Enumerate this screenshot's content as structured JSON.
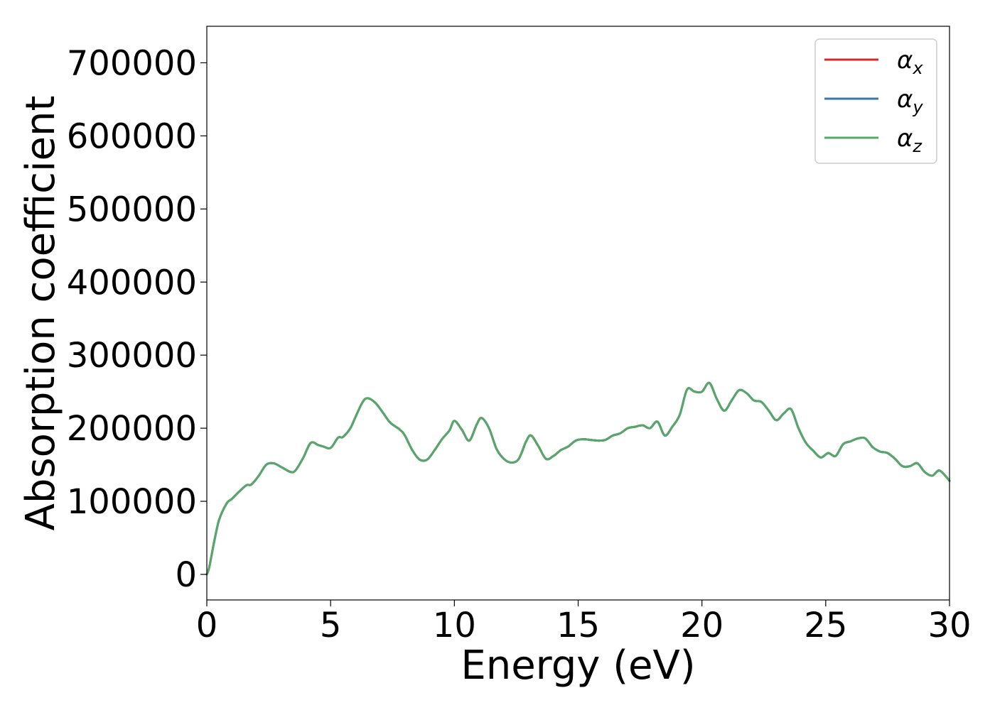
{
  "chart_data": {
    "type": "line",
    "title": "",
    "xlabel": "Energy (eV)",
    "ylabel": "Absorption coefficient",
    "xlim": [
      0,
      30
    ],
    "ylim": [
      -35000,
      750000
    ],
    "xticks": [
      0,
      5,
      10,
      15,
      20,
      25,
      30
    ],
    "xtick_labels": [
      "0",
      "5",
      "10",
      "15",
      "20",
      "25",
      "30"
    ],
    "yticks": [
      0,
      100000,
      200000,
      300000,
      400000,
      500000,
      600000,
      700000
    ],
    "ytick_labels": [
      "0",
      "100000",
      "200000",
      "300000",
      "400000",
      "500000",
      "600000",
      "700000"
    ],
    "grid": false,
    "legend_position": "top-right",
    "x": [
      0,
      0.1,
      0.3,
      0.5,
      0.8,
      1.0,
      1.3,
      1.6,
      1.8,
      2.1,
      2.4,
      2.7,
      3.0,
      3.4,
      3.6,
      3.9,
      4.2,
      4.5,
      4.7,
      5.0,
      5.3,
      5.5,
      5.8,
      6.0,
      6.3,
      6.5,
      6.8,
      7.1,
      7.4,
      7.8,
      8.0,
      8.3,
      8.6,
      8.9,
      9.2,
      9.5,
      9.8,
      10.0,
      10.3,
      10.6,
      10.9,
      11.1,
      11.4,
      11.7,
      12.0,
      12.3,
      12.6,
      12.9,
      13.1,
      13.4,
      13.7,
      14.0,
      14.3,
      14.6,
      14.9,
      15.2,
      15.5,
      15.8,
      16.1,
      16.4,
      16.7,
      17.0,
      17.3,
      17.6,
      17.9,
      18.2,
      18.5,
      18.8,
      19.1,
      19.4,
      19.7,
      20.0,
      20.3,
      20.6,
      20.9,
      21.2,
      21.5,
      21.8,
      22.1,
      22.4,
      22.7,
      23.0,
      23.3,
      23.6,
      23.9,
      24.2,
      24.5,
      24.8,
      25.1,
      25.4,
      25.7,
      26.0,
      26.3,
      26.6,
      26.9,
      27.2,
      27.5,
      27.8,
      28.1,
      28.4,
      28.7,
      29.0,
      29.3,
      29.6,
      30.0
    ],
    "series": [
      {
        "name": "αx",
        "color": "#d62728",
        "values": [
          0,
          10000,
          45000,
          75000,
          97000,
          103000,
          113000,
          122000,
          123000,
          135000,
          150000,
          152000,
          147000,
          140000,
          143000,
          160000,
          180000,
          177000,
          175000,
          173000,
          187000,
          188000,
          200000,
          215000,
          236000,
          241000,
          235000,
          222000,
          208000,
          198000,
          190000,
          170000,
          157000,
          157000,
          170000,
          185000,
          197000,
          210000,
          198000,
          183000,
          205000,
          214000,
          200000,
          172000,
          158000,
          153000,
          158000,
          182000,
          190000,
          175000,
          158000,
          162000,
          170000,
          175000,
          183000,
          185000,
          184000,
          183000,
          184000,
          190000,
          193000,
          200000,
          202000,
          204000,
          200000,
          209000,
          190000,
          202000,
          218000,
          253000,
          250000,
          250000,
          262000,
          240000,
          224000,
          238000,
          252000,
          248000,
          238000,
          236000,
          224000,
          211000,
          220000,
          226000,
          200000,
          180000,
          169000,
          160000,
          166000,
          162000,
          178000,
          182000,
          186000,
          186000,
          174000,
          168000,
          166000,
          158000,
          148000,
          148000,
          152000,
          140000,
          135000,
          142000,
          128000
        ]
      },
      {
        "name": "αy",
        "color": "#3b75af",
        "values": [
          0,
          10000,
          45000,
          75000,
          97000,
          103000,
          113000,
          122000,
          123000,
          135000,
          150000,
          152000,
          147000,
          140000,
          143000,
          160000,
          180000,
          177000,
          175000,
          173000,
          187000,
          188000,
          200000,
          215000,
          236000,
          241000,
          235000,
          222000,
          208000,
          198000,
          190000,
          170000,
          157000,
          157000,
          170000,
          185000,
          197000,
          210000,
          198000,
          183000,
          205000,
          214000,
          200000,
          172000,
          158000,
          153000,
          158000,
          182000,
          190000,
          175000,
          158000,
          162000,
          170000,
          175000,
          183000,
          185000,
          184000,
          183000,
          184000,
          190000,
          193000,
          200000,
          202000,
          204000,
          200000,
          209000,
          190000,
          202000,
          218000,
          253000,
          250000,
          250000,
          262000,
          240000,
          224000,
          238000,
          252000,
          248000,
          238000,
          236000,
          224000,
          211000,
          220000,
          226000,
          200000,
          180000,
          169000,
          160000,
          166000,
          162000,
          178000,
          182000,
          186000,
          186000,
          174000,
          168000,
          166000,
          158000,
          148000,
          148000,
          152000,
          140000,
          135000,
          142000,
          128000
        ]
      },
      {
        "name": "αz",
        "color": "#55a868",
        "values": [
          0,
          10000,
          45000,
          75000,
          97000,
          103000,
          113000,
          122000,
          123000,
          135000,
          150000,
          152000,
          147000,
          140000,
          143000,
          160000,
          180000,
          177000,
          175000,
          173000,
          187000,
          188000,
          200000,
          215000,
          236000,
          241000,
          235000,
          222000,
          208000,
          198000,
          190000,
          170000,
          157000,
          157000,
          170000,
          185000,
          197000,
          210000,
          198000,
          183000,
          205000,
          214000,
          200000,
          172000,
          158000,
          153000,
          158000,
          182000,
          190000,
          175000,
          158000,
          162000,
          170000,
          175000,
          183000,
          185000,
          184000,
          183000,
          184000,
          190000,
          193000,
          200000,
          202000,
          204000,
          200000,
          209000,
          190000,
          202000,
          218000,
          253000,
          250000,
          250000,
          262000,
          240000,
          224000,
          238000,
          252000,
          248000,
          238000,
          236000,
          224000,
          211000,
          220000,
          226000,
          200000,
          180000,
          169000,
          160000,
          166000,
          162000,
          178000,
          182000,
          186000,
          186000,
          174000,
          168000,
          166000,
          158000,
          148000,
          148000,
          152000,
          140000,
          135000,
          142000,
          128000
        ]
      }
    ],
    "legend": [
      {
        "base": "α",
        "sub": "x",
        "color": "#d62728"
      },
      {
        "base": "α",
        "sub": "y",
        "color": "#3b75af"
      },
      {
        "base": "α",
        "sub": "z",
        "color": "#55a868"
      }
    ]
  }
}
